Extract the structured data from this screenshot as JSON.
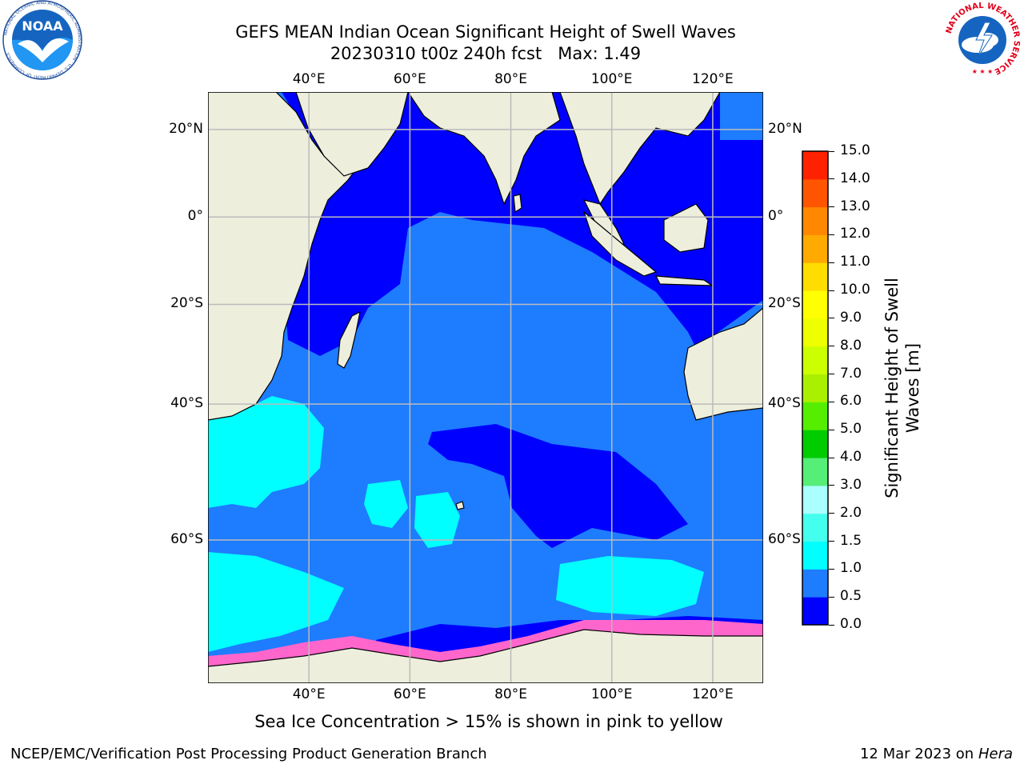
{
  "header": {
    "title_line1": "GEFS MEAN Indian Ocean Significant Height of Swell Waves",
    "title_line2": "20230310 t00z 240h fcst   Max: 1.49"
  },
  "footer": {
    "note": "Sea Ice Concentration > 15% is shown in pink to yellow",
    "credit": "NCEP/EMC/Verification Post Processing Product Generation Branch",
    "date": "12 Mar 2023 on",
    "machine": "Hera"
  },
  "logos": {
    "left": {
      "name": "NOAA",
      "ring_text": "NATIONAL OCEANIC AND ATMOSPHERIC ADMINISTRATION · U.S. DEPARTMENT OF COMMERCE"
    },
    "right": {
      "ring_text": "NATIONAL WEATHER SERVICE"
    }
  },
  "map": {
    "lon_labels": [
      "40°E",
      "60°E",
      "80°E",
      "100°E",
      "120°E"
    ],
    "lon_values": [
      40,
      60,
      80,
      100,
      120
    ],
    "lat_labels": [
      "20°N",
      "0°",
      "20°S",
      "40°S",
      "60°S"
    ],
    "lat_values": [
      20,
      0,
      -20,
      -40,
      -60
    ],
    "extent": {
      "lon_min": 20,
      "lon_max": 130,
      "lat_min": -73,
      "lat_max": 28
    },
    "colors": {
      "land": "#eeeedd",
      "ocean_low": "#0000ff",
      "ocean_mid": "#1e7cff",
      "ocean_high": "#00ffff",
      "ice": "#ff66cc",
      "grid": "#bbbbbb"
    }
  },
  "colorbar": {
    "title": "Significant Height of Swell Waves [m]",
    "ticks": [
      "0.0",
      "0.5",
      "1.0",
      "1.5",
      "2.0",
      "3.0",
      "4.0",
      "5.0",
      "6.0",
      "7.0",
      "8.0",
      "9.0",
      "10.0",
      "11.0",
      "12.0",
      "13.0",
      "14.0",
      "15.0"
    ],
    "colors": [
      "#0000ff",
      "#1e7cff",
      "#00ffff",
      "#44ffee",
      "#aaffff",
      "#55ee77",
      "#00cc00",
      "#55ee00",
      "#aaee00",
      "#ccff00",
      "#eeff00",
      "#ffff00",
      "#ffdd00",
      "#ffaa00",
      "#ff8800",
      "#ff5500",
      "#ff2200",
      "#ff0000"
    ]
  }
}
